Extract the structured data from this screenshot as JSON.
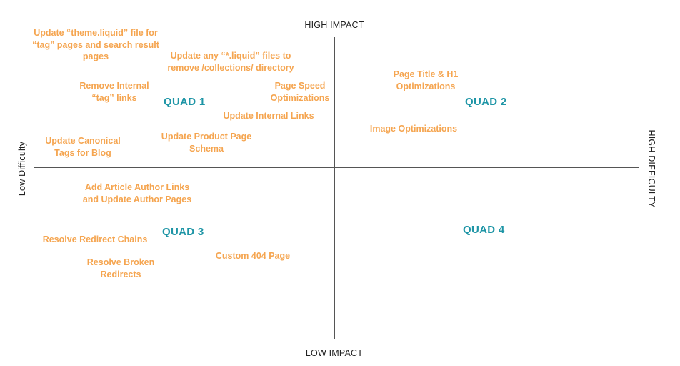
{
  "colors": {
    "task": "#F5A550",
    "quad": "#1E95A6",
    "axis": "#555555",
    "axis_text": "#222222"
  },
  "axes": {
    "top": "HIGH IMPACT",
    "bottom": "LOW IMPACT",
    "left": "Low Difficulty",
    "right": "HIGH DIFFICULTY"
  },
  "quadrants": [
    {
      "id": "quad-1",
      "label": "QUAD 1"
    },
    {
      "id": "quad-2",
      "label": "QUAD 2"
    },
    {
      "id": "quad-3",
      "label": "QUAD 3"
    },
    {
      "id": "quad-4",
      "label": "QUAD 4"
    }
  ],
  "tasks": [
    {
      "text": "Update “theme.liquid” file for\n“tag” pages and search result\npages"
    },
    {
      "text": "Update any “*.liquid” files to\nremove /collections/ directory"
    },
    {
      "text": "Remove Internal\n“tag” links"
    },
    {
      "text": "Page Speed\nOptimizations"
    },
    {
      "text": "Update Internal Links"
    },
    {
      "text": "Update Canonical\nTags for Blog"
    },
    {
      "text": "Update Product Page\nSchema"
    },
    {
      "text": "Page Title & H1\nOptimizations"
    },
    {
      "text": "Image Optimizations"
    },
    {
      "text": "Add Article Author Links\nand Update Author Pages"
    },
    {
      "text": "Resolve Redirect Chains"
    },
    {
      "text": "Custom 404 Page"
    },
    {
      "text": "Resolve Broken\nRedirects"
    }
  ]
}
